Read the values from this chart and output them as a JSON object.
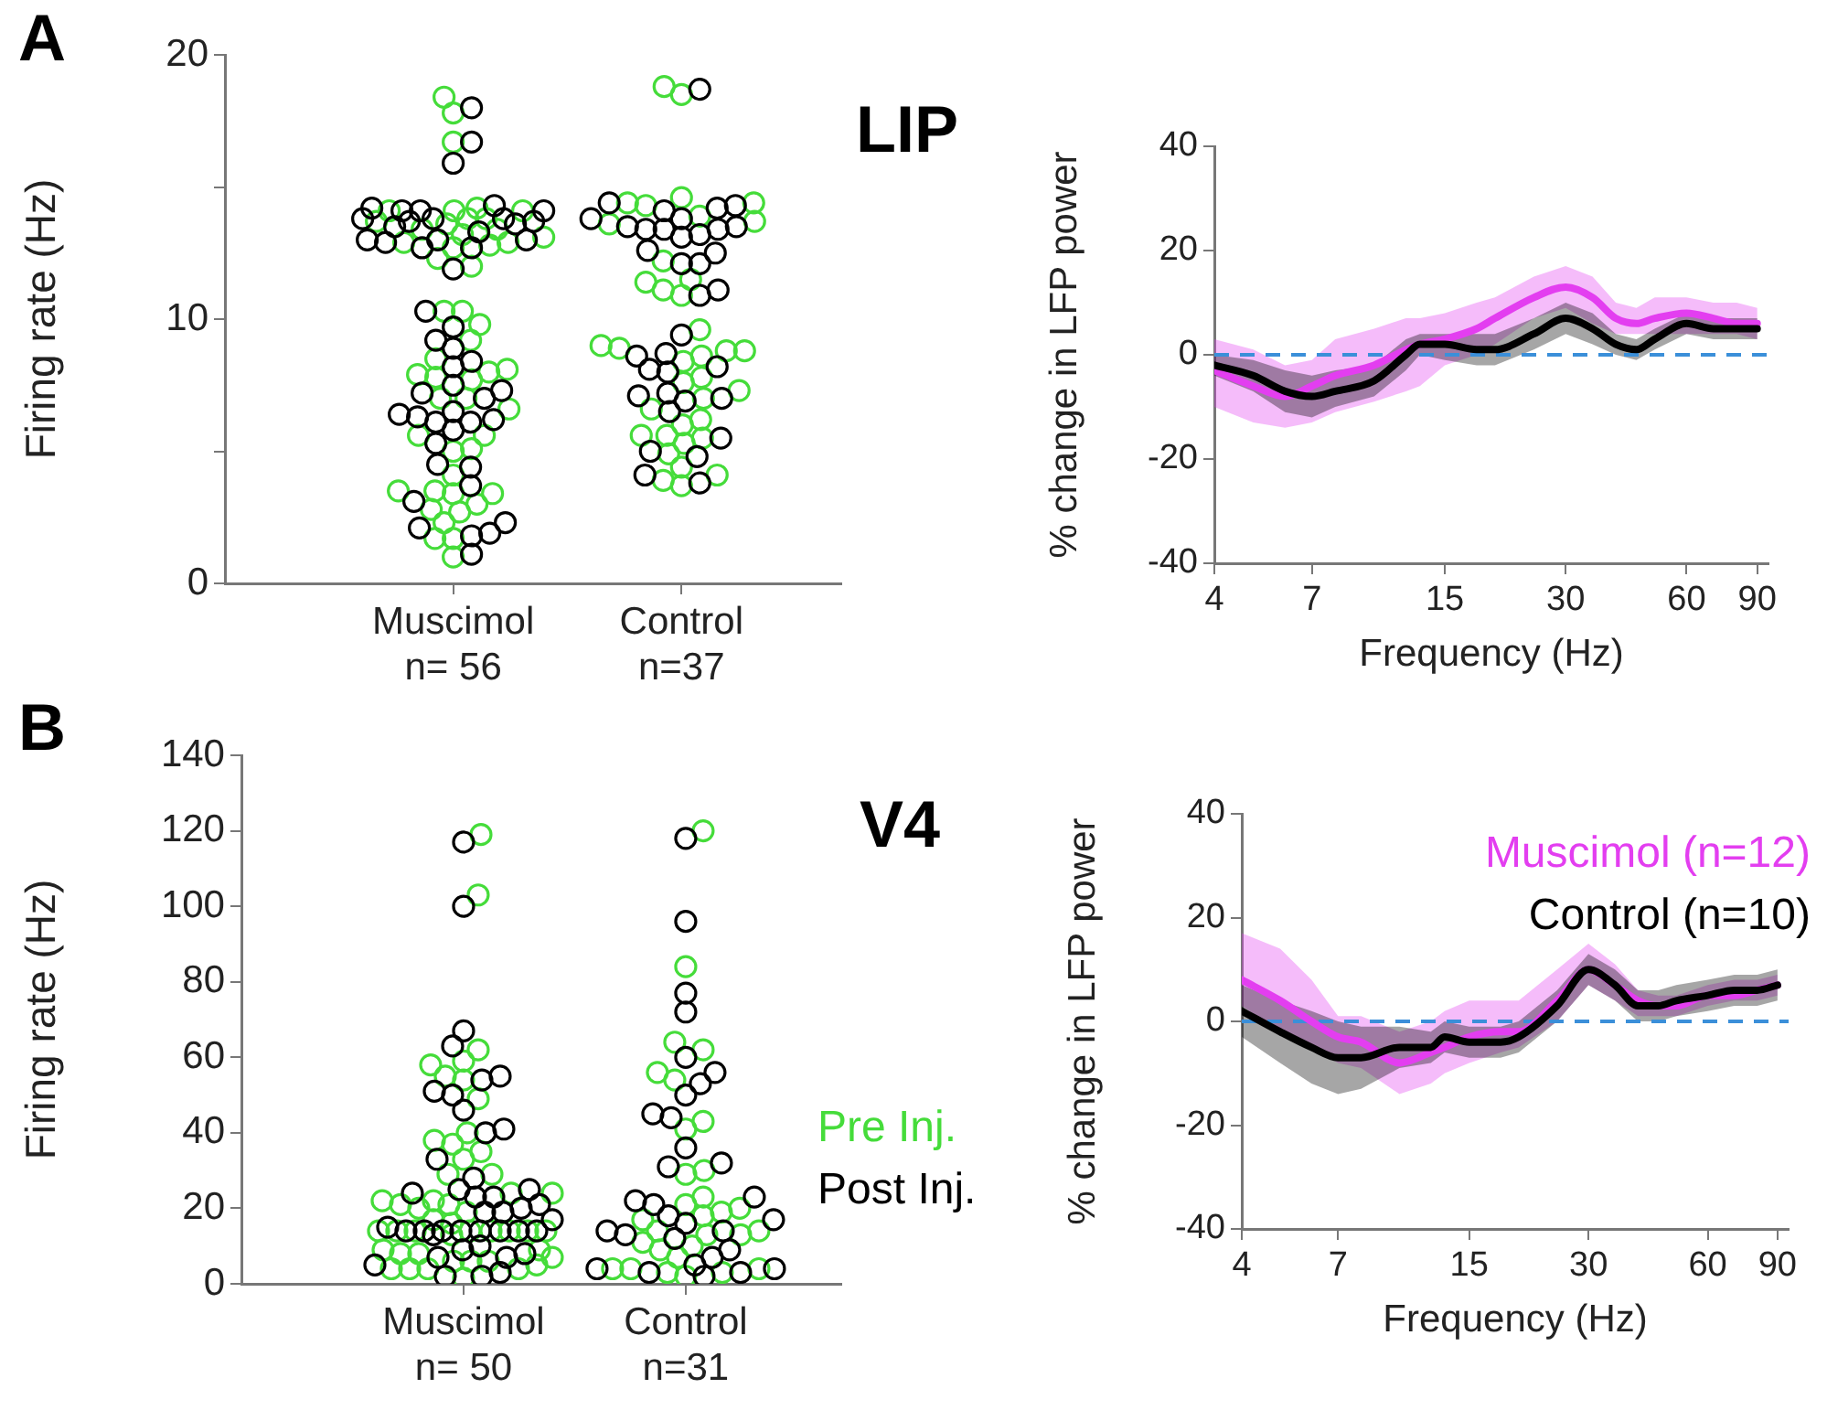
{
  "chart_data": [
    {
      "type": "scatter",
      "title": "LIP",
      "ylabel": "Firing rate (Hz)",
      "annotations": [
        "A"
      ],
      "marker": "circle",
      "categories": [
        "Muscimol\nn= 56",
        "Control\nn=37"
      ],
      "ylim": [
        0,
        20
      ],
      "yticks": [
        0,
        {
          "value": 5,
          "label": null
        },
        10,
        {
          "value": 15,
          "label": null
        },
        20
      ],
      "series": [
        {
          "color": "#45dc3a",
          "x": [
            "Muscimol\nn= 56",
            "Muscimol\nn= 56",
            "Muscimol\nn= 56",
            "Muscimol\nn= 56",
            "Muscimol\nn= 56",
            "Muscimol\nn= 56",
            "Muscimol\nn= 56",
            "Muscimol\nn= 56",
            "Muscimol\nn= 56",
            "Muscimol\nn= 56",
            "Muscimol\nn= 56",
            "Muscimol\nn= 56",
            "Muscimol\nn= 56",
            "Muscimol\nn= 56",
            "Muscimol\nn= 56",
            "Muscimol\nn= 56",
            "Muscimol\nn= 56",
            "Muscimol\nn= 56",
            "Muscimol\nn= 56",
            "Muscimol\nn= 56",
            "Muscimol\nn= 56",
            "Muscimol\nn= 56",
            "Muscimol\nn= 56",
            "Muscimol\nn= 56",
            "Muscimol\nn= 56",
            "Muscimol\nn= 56",
            "Muscimol\nn= 56",
            "Muscimol\nn= 56",
            "Muscimol\nn= 56",
            "Muscimol\nn= 56",
            "Muscimol\nn= 56",
            "Muscimol\nn= 56",
            "Muscimol\nn= 56",
            "Muscimol\nn= 56",
            "Muscimol\nn= 56",
            "Muscimol\nn= 56",
            "Muscimol\nn= 56",
            "Muscimol\nn= 56",
            "Muscimol\nn= 56",
            "Muscimol\nn= 56",
            "Muscimol\nn= 56",
            "Muscimol\nn= 56",
            "Muscimol\nn= 56",
            "Muscimol\nn= 56",
            "Muscimol\nn= 56",
            "Muscimol\nn= 56",
            "Muscimol\nn= 56",
            "Muscimol\nn= 56",
            "Muscimol\nn= 56",
            "Muscimol\nn= 56"
          ],
          "values": [
            14.1,
            14.2,
            13.4,
            13.4,
            13.6,
            13.7,
            12.7,
            12.8,
            12.0,
            18.4,
            17.8,
            16.7,
            13.8,
            13.8,
            14.1,
            14.1,
            13.2,
            13.1,
            12.9,
            12.9,
            12.3,
            9.2,
            9.8,
            10.3,
            10.3,
            8.1,
            8.5,
            7.0,
            6.6,
            5.6,
            5.0,
            7.9,
            8.0,
            7.8,
            7.7,
            7.0,
            5.6,
            5.1,
            4.1,
            3.4,
            3.4,
            2.7,
            2.3,
            3.5,
            3.5,
            3.0,
            2.8,
            1.0,
            1.7,
            1.7
          ]
        },
        {
          "color": "#000000",
          "x": [
            "Muscimol\nn= 56",
            "Muscimol\nn= 56",
            "Muscimol\nn= 56",
            "Muscimol\nn= 56",
            "Muscimol\nn= 56",
            "Muscimol\nn= 56",
            "Muscimol\nn= 56",
            "Muscimol\nn= 56",
            "Muscimol\nn= 56",
            "Muscimol\nn= 56",
            "Muscimol\nn= 56",
            "Muscimol\nn= 56",
            "Muscimol\nn= 56",
            "Muscimol\nn= 56",
            "Muscimol\nn= 56",
            "Muscimol\nn= 56",
            "Muscimol\nn= 56",
            "Muscimol\nn= 56",
            "Muscimol\nn= 56",
            "Muscimol\nn= 56",
            "Muscimol\nn= 56",
            "Muscimol\nn= 56",
            "Muscimol\nn= 56",
            "Muscimol\nn= 56",
            "Muscimol\nn= 56",
            "Muscimol\nn= 56",
            "Muscimol\nn= 56",
            "Muscimol\nn= 56",
            "Muscimol\nn= 56",
            "Muscimol\nn= 56",
            "Muscimol\nn= 56",
            "Muscimol\nn= 56",
            "Muscimol\nn= 56",
            "Muscimol\nn= 56",
            "Muscimol\nn= 56",
            "Muscimol\nn= 56",
            "Muscimol\nn= 56",
            "Muscimol\nn= 56",
            "Muscimol\nn= 56",
            "Muscimol\nn= 56",
            "Muscimol\nn= 56",
            "Muscimol\nn= 56",
            "Muscimol\nn= 56",
            "Muscimol\nn= 56",
            "Muscimol\nn= 56",
            "Muscimol\nn= 56",
            "Muscimol\nn= 56",
            "Muscimol\nn= 56",
            "Muscimol\nn= 56",
            "Muscimol\nn= 56"
          ],
          "values": [
            18.0,
            16.7,
            15.9,
            14.2,
            14.1,
            13.6,
            13.7,
            13.7,
            13.8,
            14.3,
            14.1,
            14.1,
            13.8,
            13.8,
            12.9,
            12.7,
            13.0,
            12.7,
            13.0,
            13.5,
            13.0,
            13.3,
            11.9,
            10.3,
            9.7,
            8.9,
            8.4,
            9.2,
            8.2,
            7.5,
            7.2,
            7.3,
            7.0,
            6.1,
            6.1,
            6.2,
            5.8,
            6.3,
            5.3,
            6.5,
            6.4,
            4.4,
            4.5,
            3.7,
            3.1,
            2.1,
            2.3,
            1.8,
            1.9,
            1.1
          ]
        },
        {
          "color": "#45dc3a",
          "x": [
            "Control\nn=37",
            "Control\nn=37",
            "Control\nn=37",
            "Control\nn=37",
            "Control\nn=37",
            "Control\nn=37",
            "Control\nn=37",
            "Control\nn=37",
            "Control\nn=37",
            "Control\nn=37",
            "Control\nn=37",
            "Control\nn=37",
            "Control\nn=37",
            "Control\nn=37",
            "Control\nn=37",
            "Control\nn=37",
            "Control\nn=37",
            "Control\nn=37",
            "Control\nn=37",
            "Control\nn=37",
            "Control\nn=37",
            "Control\nn=37",
            "Control\nn=37",
            "Control\nn=37",
            "Control\nn=37",
            "Control\nn=37",
            "Control\nn=37",
            "Control\nn=37",
            "Control\nn=37",
            "Control\nn=37",
            "Control\nn=37",
            "Control\nn=37",
            "Control\nn=37",
            "Control\nn=37",
            "Control\nn=37",
            "Control\nn=37",
            "Control\nn=37"
          ],
          "values": [
            13.7,
            14.3,
            14.4,
            13.6,
            18.5,
            18.8,
            14.6,
            14.4,
            13.9,
            12.2,
            11.5,
            10.9,
            11.4,
            11.1,
            9.6,
            8.9,
            8.6,
            8.4,
            9.0,
            8.8,
            8.8,
            7.0,
            7.6,
            7.8,
            7.3,
            6.6,
            6.2,
            6.0,
            5.6,
            5.6,
            5.5,
            3.7,
            3.9,
            4.4,
            4.1,
            4.9,
            5.3
          ]
        },
        {
          "color": "#000000",
          "x": [
            "Control\nn=37",
            "Control\nn=37",
            "Control\nn=37",
            "Control\nn=37",
            "Control\nn=37",
            "Control\nn=37",
            "Control\nn=37",
            "Control\nn=37",
            "Control\nn=37",
            "Control\nn=37",
            "Control\nn=37",
            "Control\nn=37",
            "Control\nn=37",
            "Control\nn=37",
            "Control\nn=37",
            "Control\nn=37",
            "Control\nn=37",
            "Control\nn=37",
            "Control\nn=37",
            "Control\nn=37",
            "Control\nn=37",
            "Control\nn=37",
            "Control\nn=37",
            "Control\nn=37",
            "Control\nn=37",
            "Control\nn=37",
            "Control\nn=37",
            "Control\nn=37",
            "Control\nn=37",
            "Control\nn=37",
            "Control\nn=37",
            "Control\nn=37",
            "Control\nn=37",
            "Control\nn=37",
            "Control\nn=37",
            "Control\nn=37"
          ],
          "values": [
            18.7,
            14.1,
            13.1,
            13.4,
            13.5,
            13.2,
            13.8,
            13.5,
            13.4,
            13.8,
            13.4,
            14.3,
            14.2,
            14.4,
            12.1,
            12.1,
            12.5,
            12.6,
            11.1,
            10.9,
            9.4,
            8.7,
            8.6,
            8.0,
            8.2,
            8.1,
            7.2,
            6.5,
            6.9,
            7.0,
            7.1,
            5.0,
            4.8,
            4.1,
            3.8,
            5.5
          ]
        }
      ]
    },
    {
      "type": "line",
      "xlabel": "Frequency (Hz)",
      "ylabel": "% change in LFP power",
      "log": "x",
      "xlim": [
        4,
        96
      ],
      "xticks": [
        4,
        7,
        15,
        30,
        60,
        90
      ],
      "ylim": [
        -40,
        40
      ],
      "yticks": [
        -40,
        -20,
        0,
        20,
        40
      ],
      "ref_lines": [
        {
          "axis": "y",
          "value": 0,
          "color": "#3b8fd9",
          "line_style": "dashed"
        }
      ],
      "x": [
        4,
        5,
        6,
        7,
        8,
        10,
        12,
        13,
        15,
        18,
        20,
        25,
        30,
        35,
        40,
        45,
        50,
        60,
        70,
        80,
        90
      ],
      "series": [
        {
          "color": "#e33ef0",
          "values": [
            -3,
            -6,
            -8,
            -6,
            -4,
            -2,
            1,
            2,
            3,
            5,
            7,
            11,
            13,
            11,
            7,
            6,
            7,
            8,
            7,
            6,
            6
          ],
          "upper": [
            3,
            1,
            -2,
            -1,
            3,
            5,
            7,
            7,
            8,
            10,
            11,
            15,
            17,
            15,
            10,
            9,
            11,
            11,
            10,
            10,
            9
          ],
          "lower": [
            -10,
            -13,
            -14,
            -13,
            -11,
            -9,
            -7,
            -6,
            -2,
            0,
            2,
            7,
            9,
            6,
            4,
            4,
            4,
            4,
            4,
            4,
            3
          ]
        },
        {
          "color": "#000000",
          "values": [
            -2,
            -4,
            -7,
            -8,
            -7,
            -5,
            0,
            2,
            2,
            1,
            1,
            4,
            7,
            5,
            2,
            1,
            3,
            6,
            5,
            5,
            5
          ],
          "upper": [
            0,
            -1,
            -3,
            -4,
            -3,
            -2,
            3,
            4,
            4,
            4,
            4,
            7,
            10,
            8,
            4,
            3,
            5,
            8,
            7,
            7,
            7
          ],
          "lower": [
            -4,
            -7,
            -11,
            -12,
            -10,
            -8,
            -3,
            0,
            -1,
            -2,
            -2,
            1,
            4,
            2,
            0,
            -1,
            1,
            4,
            3,
            3,
            3
          ]
        }
      ]
    },
    {
      "type": "scatter",
      "title": "V4",
      "ylabel": "Firing rate (Hz)",
      "annotations": [
        "B"
      ],
      "marker": "circle",
      "legend": "right",
      "categories": [
        "Muscimol\nn= 50",
        "Control\nn=31"
      ],
      "ylim": [
        0,
        140
      ],
      "yticks": [
        0,
        20,
        40,
        60,
        80,
        100,
        120,
        140
      ],
      "series": [
        {
          "name": "Pre Inj.",
          "color": "#45dc3a",
          "x": [
            "Muscimol\nn= 50",
            "Muscimol\nn= 50",
            "Muscimol\nn= 50",
            "Muscimol\nn= 50",
            "Muscimol\nn= 50",
            "Muscimol\nn= 50",
            "Muscimol\nn= 50",
            "Muscimol\nn= 50",
            "Muscimol\nn= 50",
            "Muscimol\nn= 50",
            "Muscimol\nn= 50",
            "Muscimol\nn= 50",
            "Muscimol\nn= 50",
            "Muscimol\nn= 50",
            "Muscimol\nn= 50",
            "Muscimol\nn= 50",
            "Muscimol\nn= 50",
            "Muscimol\nn= 50",
            "Muscimol\nn= 50",
            "Muscimol\nn= 50",
            "Muscimol\nn= 50",
            "Muscimol\nn= 50",
            "Muscimol\nn= 50",
            "Muscimol\nn= 50",
            "Muscimol\nn= 50",
            "Muscimol\nn= 50",
            "Muscimol\nn= 50",
            "Muscimol\nn= 50",
            "Muscimol\nn= 50",
            "Muscimol\nn= 50",
            "Muscimol\nn= 50",
            "Muscimol\nn= 50",
            "Muscimol\nn= 50",
            "Muscimol\nn= 50",
            "Muscimol\nn= 50",
            "Muscimol\nn= 50",
            "Muscimol\nn= 50",
            "Muscimol\nn= 50",
            "Muscimol\nn= 50",
            "Muscimol\nn= 50",
            "Muscimol\nn= 50",
            "Muscimol\nn= 50",
            "Muscimol\nn= 50",
            "Muscimol\nn= 50",
            "Muscimol\nn= 50",
            "Muscimol\nn= 50",
            "Muscimol\nn= 50",
            "Muscimol\nn= 50",
            "Control\nn=31",
            "Control\nn=31",
            "Control\nn=31",
            "Control\nn=31",
            "Control\nn=31",
            "Control\nn=31",
            "Control\nn=31",
            "Control\nn=31",
            "Control\nn=31",
            "Control\nn=31",
            "Control\nn=31",
            "Control\nn=31",
            "Control\nn=31",
            "Control\nn=31",
            "Control\nn=31",
            "Control\nn=31",
            "Control\nn=31",
            "Control\nn=31",
            "Control\nn=31",
            "Control\nn=31",
            "Control\nn=31",
            "Control\nn=31",
            "Control\nn=31",
            "Control\nn=31",
            "Control\nn=31",
            "Control\nn=31",
            "Control\nn=31",
            "Control\nn=31",
            "Control\nn=31",
            "Control\nn=31"
          ],
          "values": [
            119,
            103,
            54,
            59,
            58,
            62,
            55,
            49,
            40,
            35,
            37,
            38,
            33,
            29,
            29,
            24,
            22,
            21,
            21,
            24,
            22,
            20,
            19,
            17,
            16,
            14,
            14,
            14,
            14,
            14,
            13,
            14,
            14,
            14,
            9,
            8,
            8,
            6,
            4,
            4,
            6,
            9,
            7,
            6,
            4,
            5,
            1.5,
            4,
            120,
            84,
            62,
            64,
            56,
            54,
            43,
            41,
            30,
            29,
            23,
            21,
            18,
            14,
            14,
            13,
            11,
            7,
            13,
            20,
            19,
            17,
            10,
            9,
            2,
            3,
            4,
            4,
            4,
            3
          ]
        },
        {
          "name": "Post Inj.",
          "color": "#000000",
          "x": [
            "Muscimol\nn= 50",
            "Muscimol\nn= 50",
            "Muscimol\nn= 50",
            "Muscimol\nn= 50",
            "Muscimol\nn= 50",
            "Muscimol\nn= 50",
            "Muscimol\nn= 50",
            "Muscimol\nn= 50",
            "Muscimol\nn= 50",
            "Muscimol\nn= 50",
            "Muscimol\nn= 50",
            "Muscimol\nn= 50",
            "Muscimol\nn= 50",
            "Muscimol\nn= 50",
            "Muscimol\nn= 50",
            "Muscimol\nn= 50",
            "Muscimol\nn= 50",
            "Muscimol\nn= 50",
            "Muscimol\nn= 50",
            "Muscimol\nn= 50",
            "Muscimol\nn= 50",
            "Muscimol\nn= 50",
            "Muscimol\nn= 50",
            "Muscimol\nn= 50",
            "Muscimol\nn= 50",
            "Muscimol\nn= 50",
            "Muscimol\nn= 50",
            "Muscimol\nn= 50",
            "Muscimol\nn= 50",
            "Muscimol\nn= 50",
            "Muscimol\nn= 50",
            "Muscimol\nn= 50",
            "Muscimol\nn= 50",
            "Muscimol\nn= 50",
            "Muscimol\nn= 50",
            "Muscimol\nn= 50",
            "Muscimol\nn= 50",
            "Muscimol\nn= 50",
            "Muscimol\nn= 50",
            "Muscimol\nn= 50",
            "Muscimol\nn= 50",
            "Muscimol\nn= 50",
            "Control\nn=31",
            "Control\nn=31",
            "Control\nn=31",
            "Control\nn=31",
            "Control\nn=31",
            "Control\nn=31",
            "Control\nn=31",
            "Control\nn=31",
            "Control\nn=31",
            "Control\nn=31",
            "Control\nn=31",
            "Control\nn=31",
            "Control\nn=31",
            "Control\nn=31",
            "Control\nn=31",
            "Control\nn=31",
            "Control\nn=31",
            "Control\nn=31",
            "Control\nn=31",
            "Control\nn=31",
            "Control\nn=31",
            "Control\nn=31",
            "Control\nn=31",
            "Control\nn=31",
            "Control\nn=31",
            "Control\nn=31",
            "Control\nn=31",
            "Control\nn=31",
            "Control\nn=31",
            "Control\nn=31",
            "Control\nn=31"
          ],
          "values": [
            117,
            100,
            67,
            63,
            55,
            54,
            51,
            50,
            46,
            41,
            40,
            33,
            28,
            25,
            24,
            25,
            23,
            23,
            21,
            20,
            19,
            19,
            17,
            14,
            14,
            14,
            14,
            14,
            15,
            14,
            14,
            13,
            9,
            10,
            8,
            7,
            7,
            5,
            3,
            2,
            2,
            14,
            118,
            96,
            77,
            72,
            60,
            56,
            53,
            50,
            45,
            44,
            36,
            32,
            31,
            22,
            21,
            23,
            18,
            17,
            16,
            14,
            14,
            13,
            12,
            9,
            7,
            4,
            5,
            3,
            4,
            3,
            2
          ]
        }
      ]
    },
    {
      "type": "line",
      "xlabel": "Frequency (Hz)",
      "ylabel": "% change in LFP power",
      "log": "x",
      "legend": "top right",
      "xlim": [
        4,
        96
      ],
      "xticks": [
        4,
        7,
        15,
        30,
        60,
        90
      ],
      "ylim": [
        -40,
        40
      ],
      "yticks": [
        -40,
        -20,
        0,
        20,
        40
      ],
      "ref_lines": [
        {
          "axis": "y",
          "value": 0,
          "color": "#3b8fd9",
          "line_style": "dashed"
        }
      ],
      "x": [
        4,
        5,
        6,
        7,
        8,
        10,
        12,
        13,
        15,
        18,
        20,
        25,
        30,
        35,
        40,
        45,
        50,
        60,
        70,
        80,
        90
      ],
      "series": [
        {
          "name": "Muscimol (n=12)",
          "color": "#e33ef0",
          "values": [
            8,
            4,
            0,
            -3,
            -4,
            -8,
            -6,
            -5,
            -3,
            -2,
            -2,
            4,
            10,
            7,
            4,
            3,
            3,
            5,
            5,
            6,
            7
          ],
          "upper": [
            17,
            14,
            8,
            1,
            1,
            -2,
            0,
            2,
            4,
            4,
            4,
            10,
            15,
            11,
            6,
            5,
            5,
            7,
            8,
            8,
            9
          ],
          "lower": [
            3,
            -2,
            -5,
            -8,
            -9,
            -14,
            -12,
            -10,
            -8,
            -6,
            -5,
            0,
            7,
            4,
            1,
            1,
            1,
            3,
            4,
            4,
            5
          ]
        },
        {
          "name": "Control (n=10)",
          "color": "#000000",
          "values": [
            2,
            -2,
            -5,
            -7,
            -7,
            -5,
            -5,
            -3,
            -4,
            -4,
            -3,
            3,
            10,
            7,
            3,
            3,
            4,
            5,
            6,
            6,
            7
          ],
          "upper": [
            7,
            4,
            2,
            0,
            -1,
            -1,
            -2,
            0,
            -1,
            -1,
            0,
            6,
            13,
            10,
            6,
            6,
            7,
            8,
            9,
            9,
            10
          ],
          "lower": [
            -3,
            -8,
            -12,
            -14,
            -13,
            -9,
            -8,
            -6,
            -7,
            -7,
            -6,
            0,
            7,
            4,
            0,
            0,
            1,
            2,
            3,
            3,
            4
          ]
        }
      ]
    }
  ]
}
